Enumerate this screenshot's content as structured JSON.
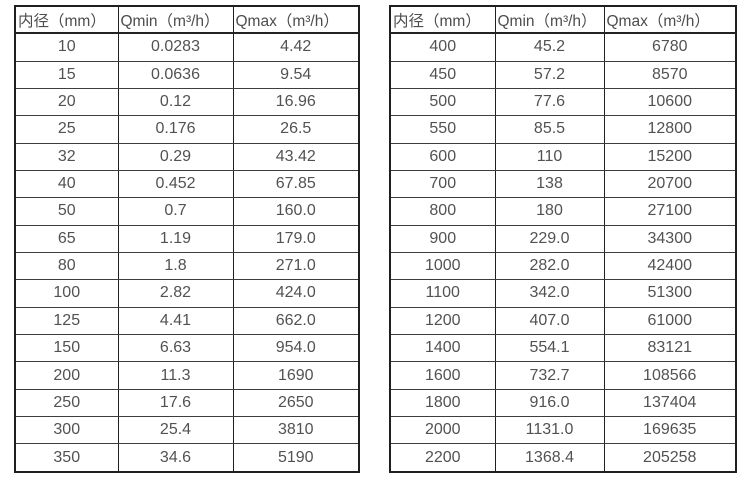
{
  "tables": [
    {
      "name": "flow-range-table-small-diameters",
      "headers": [
        "内径（mm）",
        "Qmin（m³/h）",
        "Qmax（m³/h）"
      ],
      "rows": [
        [
          "10",
          "0.0283",
          "4.42"
        ],
        [
          "15",
          "0.0636",
          "9.54"
        ],
        [
          "20",
          "0.12",
          "16.96"
        ],
        [
          "25",
          "0.176",
          "26.5"
        ],
        [
          "32",
          "0.29",
          "43.42"
        ],
        [
          "40",
          "0.452",
          "67.85"
        ],
        [
          "50",
          "0.7",
          "160.0"
        ],
        [
          "65",
          "1.19",
          "179.0"
        ],
        [
          "80",
          "1.8",
          "271.0"
        ],
        [
          "100",
          "2.82",
          "424.0"
        ],
        [
          "125",
          "4.41",
          "662.0"
        ],
        [
          "150",
          "6.63",
          "954.0"
        ],
        [
          "200",
          "11.3",
          "1690"
        ],
        [
          "250",
          "17.6",
          "2650"
        ],
        [
          "300",
          "25.4",
          "3810"
        ],
        [
          "350",
          "34.6",
          "5190"
        ]
      ]
    },
    {
      "name": "flow-range-table-large-diameters",
      "headers": [
        "内径（mm）",
        "Qmin（m³/h）",
        "Qmax（m³/h）"
      ],
      "rows": [
        [
          "400",
          "45.2",
          "6780"
        ],
        [
          "450",
          "57.2",
          "8570"
        ],
        [
          "500",
          "77.6",
          "10600"
        ],
        [
          "550",
          "85.5",
          "12800"
        ],
        [
          "600",
          "110",
          "15200"
        ],
        [
          "700",
          "138",
          "20700"
        ],
        [
          "800",
          "180",
          "27100"
        ],
        [
          "900",
          "229.0",
          "34300"
        ],
        [
          "1000",
          "282.0",
          "42400"
        ],
        [
          "1100",
          "342.0",
          "51300"
        ],
        [
          "1200",
          "407.0",
          "61000"
        ],
        [
          "1400",
          "554.1",
          "83121"
        ],
        [
          "1600",
          "732.7",
          "108566"
        ],
        [
          "1800",
          "916.0",
          "137404"
        ],
        [
          "2000",
          "1131.0",
          "169635"
        ],
        [
          "2200",
          "1368.4",
          "205258"
        ]
      ]
    }
  ],
  "colors": {
    "outer_border": "#1f1f1f",
    "inner_border": "#3d3d3d",
    "text": "#525252",
    "background": "#ffffff"
  }
}
